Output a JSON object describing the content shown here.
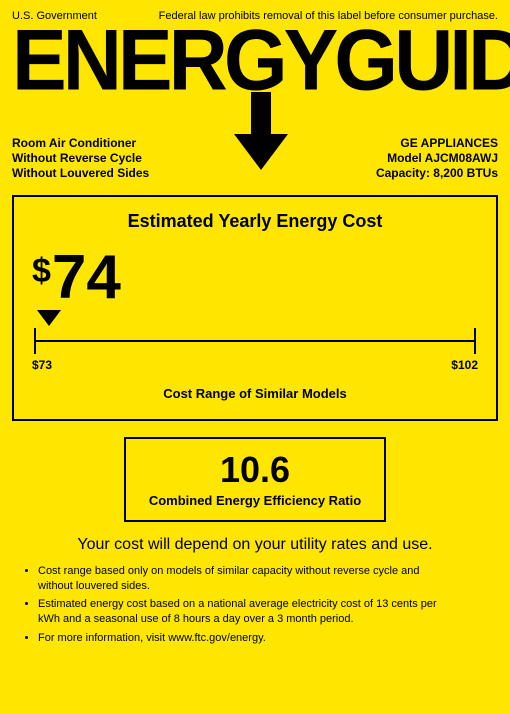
{
  "header": {
    "gov": "U.S. Government",
    "legal": "Federal law prohibits removal of this label before consumer purchase."
  },
  "logo": "ENERGYGUIDE",
  "specs": {
    "left1": "Room Air Conditioner",
    "left2": "Without Reverse Cycle",
    "left3": "Without Louvered Sides",
    "right1": "GE APPLIANCES",
    "right2": "Model AJCM08AWJ",
    "right3": "Capacity: 8,200 BTUs"
  },
  "cost": {
    "title": "Estimated Yearly Energy Cost",
    "dollar": "$",
    "value": "74",
    "low": "$73",
    "high": "$102",
    "range_min": 73,
    "range_max": 102,
    "current": 74,
    "caption": "Cost Range of Similar Models"
  },
  "ceer": {
    "value": "10.6",
    "label": "Combined Energy Efficiency Ratio"
  },
  "depends": "Your cost will depend on your utility rates and use.",
  "bullets": [
    "Cost range based only on models of similar capacity without reverse cycle and without louvered sides.",
    "Estimated energy cost based on a national average electricity cost of 13 cents per kWh and a seasonal use of 8 hours a day over a 3 month period.",
    "For more information, visit www.ftc.gov/energy."
  ],
  "colors": {
    "bg": "#ffe600",
    "fg": "#000000"
  }
}
